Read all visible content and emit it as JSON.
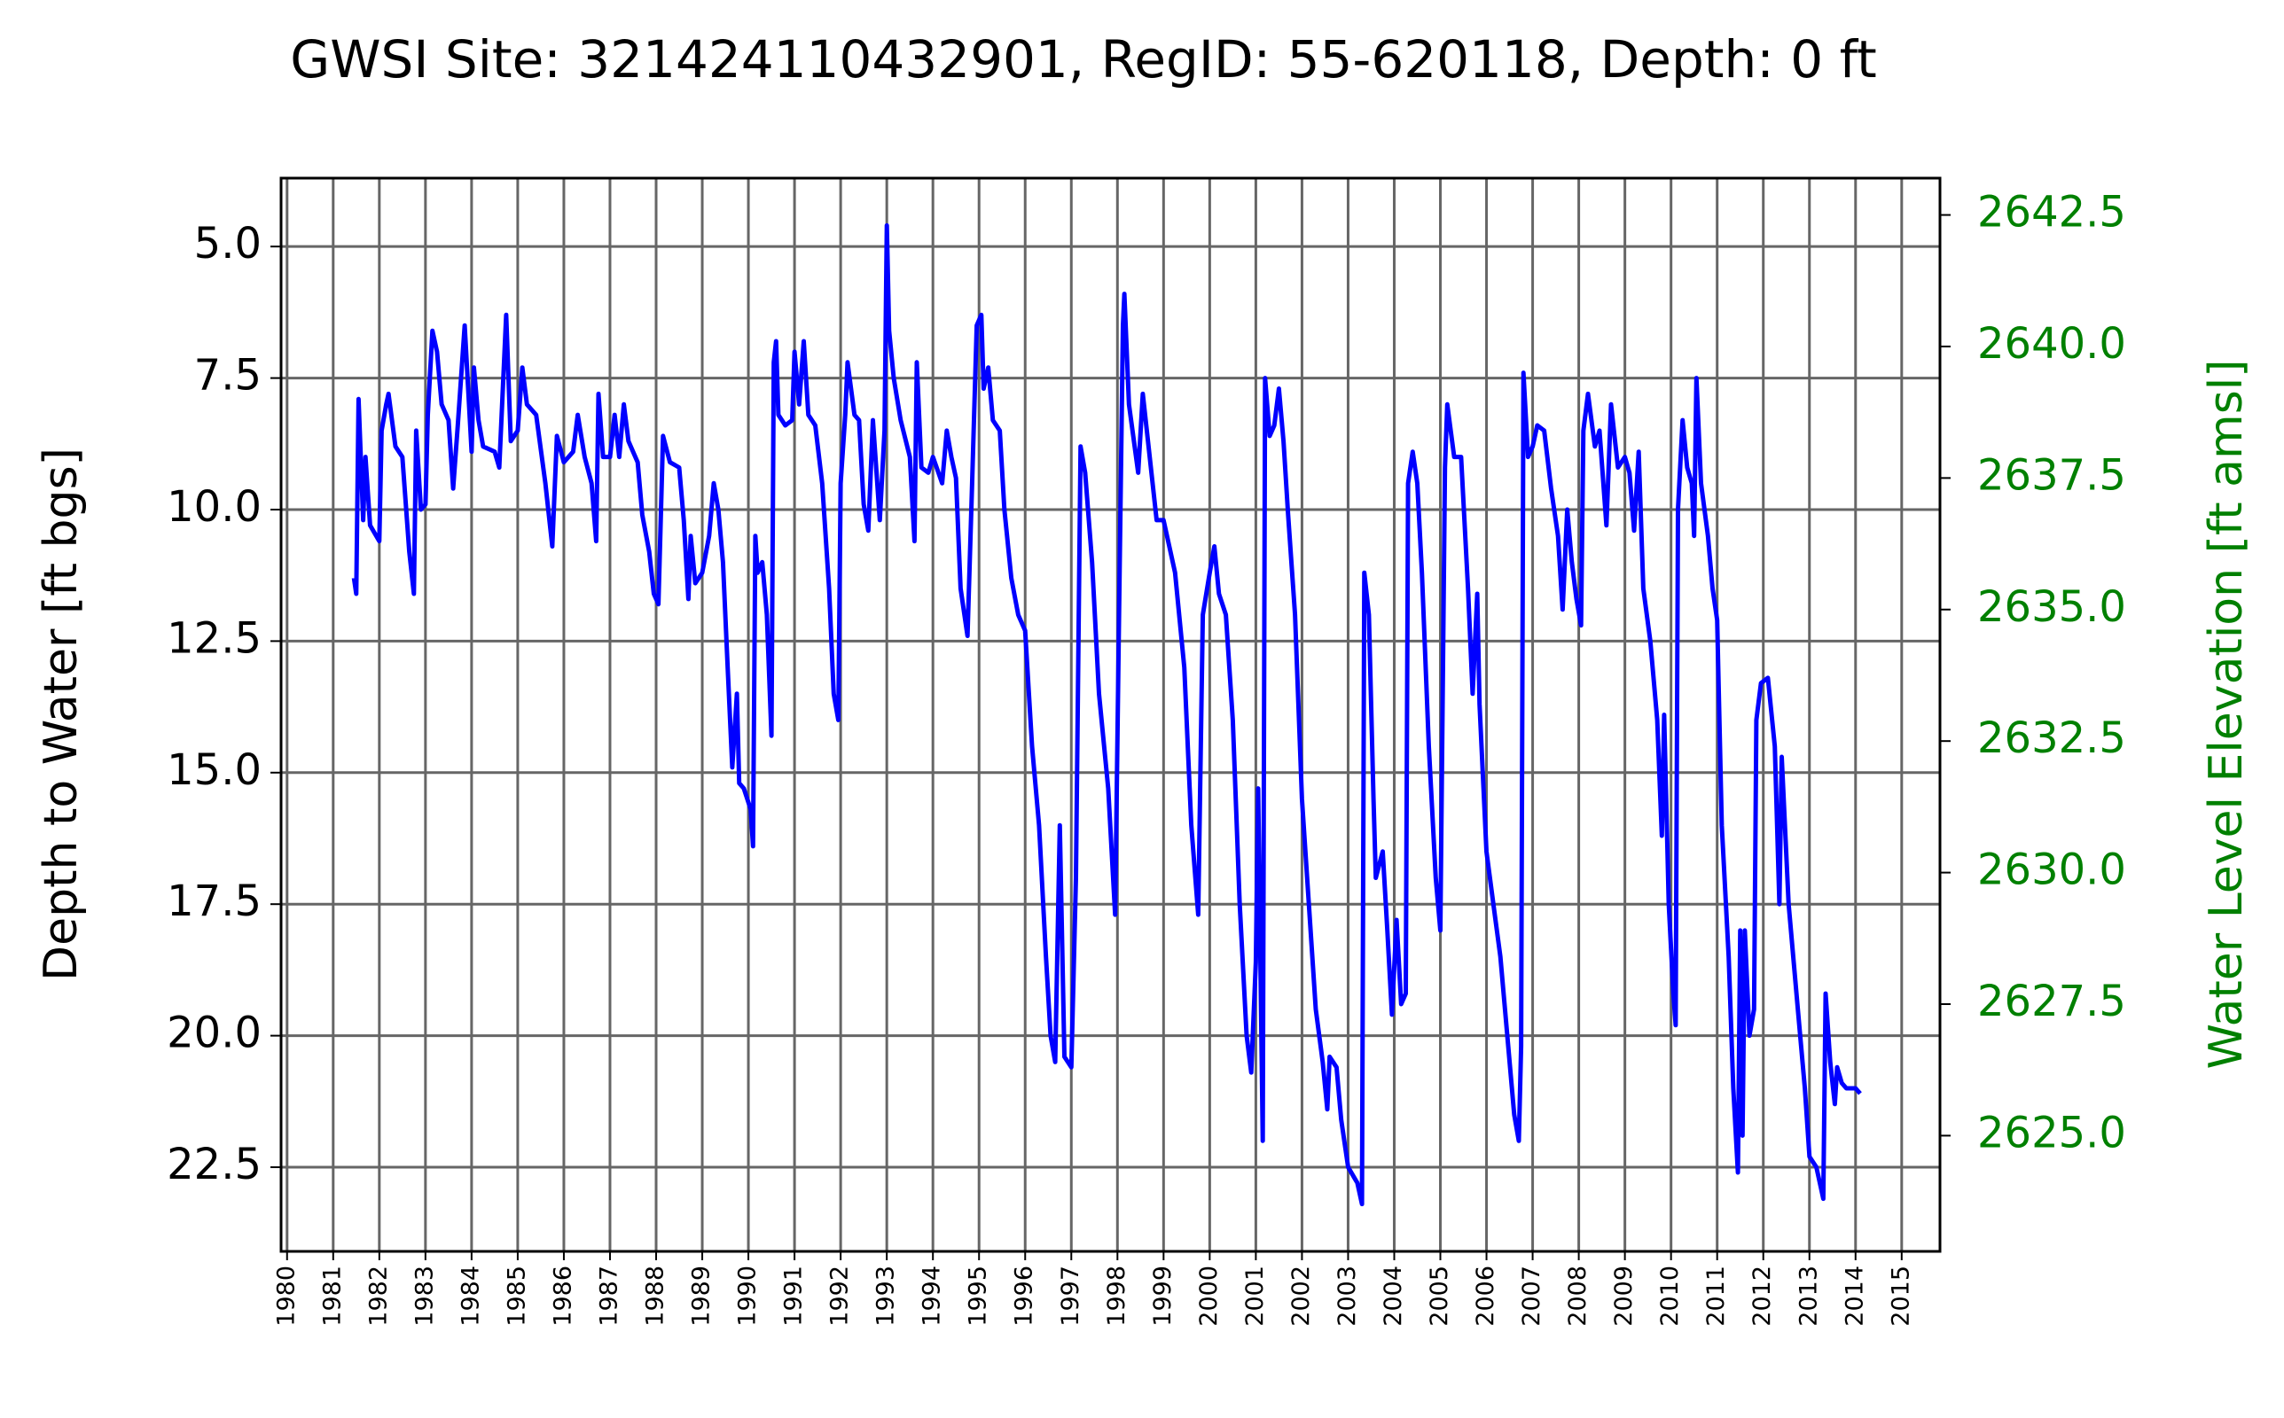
{
  "chart_data": {
    "type": "line",
    "title": "GWSI Site: 321424110432901, RegID: 55-620118, Depth: 0 ft",
    "y_label": "Depth to Water [ft bgs]",
    "y2_label": "Water Level Elevation [ft amsl]",
    "y2_color": "#008000",
    "grid": true,
    "y_inverted": true,
    "xlim": [
      1979.87,
      2015.83
    ],
    "xticks": [
      1980,
      1981,
      1982,
      1983,
      1984,
      1985,
      1986,
      1987,
      1988,
      1989,
      1990,
      1991,
      1992,
      1993,
      1994,
      1995,
      1996,
      1997,
      1998,
      1999,
      2000,
      2001,
      2002,
      2003,
      2004,
      2005,
      2006,
      2007,
      2008,
      2009,
      2010,
      2011,
      2012,
      2013,
      2014,
      2015
    ],
    "ylim": [
      3.7,
      24.1
    ],
    "yticks": [
      {
        "value": 5,
        "label": "5.0"
      },
      7.5,
      {
        "value": 10,
        "label": "10.0"
      },
      12.5,
      {
        "value": 15,
        "label": "15.0"
      },
      17.5,
      {
        "value": 20,
        "label": "20.0"
      },
      22.5
    ],
    "y2lim": [
      2622.8,
      2643.2
    ],
    "y2ticks": [
      {
        "value": 2625,
        "label": "2625.0"
      },
      2627.5,
      {
        "value": 2630,
        "label": "2630.0"
      },
      2632.5,
      {
        "value": 2635,
        "label": "2635.0"
      },
      2637.5,
      {
        "value": 2640,
        "label": "2640.0"
      },
      2642.5
    ],
    "x": [
      1981.45,
      1981.5,
      1981.55,
      1981.65,
      1981.7,
      1981.8,
      1982.0,
      1982.05,
      1982.15,
      1982.2,
      1982.35,
      1982.5,
      1982.65,
      1982.75,
      1982.8,
      1982.9,
      1983.0,
      1983.05,
      1983.15,
      1983.25,
      1983.35,
      1983.5,
      1983.6,
      1983.7,
      1983.85,
      1984.0,
      1984.05,
      1984.15,
      1984.25,
      1984.5,
      1984.6,
      1984.75,
      1984.85,
      1985.0,
      1985.1,
      1985.2,
      1985.4,
      1985.6,
      1985.75,
      1985.85,
      1986.0,
      1986.2,
      1986.3,
      1986.45,
      1986.6,
      1986.7,
      1986.75,
      1986.85,
      1987.0,
      1987.1,
      1987.2,
      1987.3,
      1987.4,
      1987.6,
      1987.7,
      1987.85,
      1987.95,
      1988.05,
      1988.15,
      1988.3,
      1988.5,
      1988.6,
      1988.7,
      1988.75,
      1988.85,
      1989.0,
      1989.15,
      1989.25,
      1989.35,
      1989.45,
      1989.55,
      1989.65,
      1989.75,
      1989.8,
      1989.9,
      1990.05,
      1990.1,
      1990.15,
      1990.2,
      1990.3,
      1990.4,
      1990.5,
      1990.55,
      1990.6,
      1990.65,
      1990.8,
      1990.95,
      1991.0,
      1991.1,
      1991.2,
      1991.3,
      1991.45,
      1991.6,
      1991.75,
      1991.85,
      1991.95,
      1992.0,
      1992.1,
      1992.15,
      1992.3,
      1992.4,
      1992.5,
      1992.6,
      1992.7,
      1992.85,
      1992.95,
      1993.0,
      1993.05,
      1993.15,
      1993.3,
      1993.5,
      1993.6,
      1993.65,
      1993.75,
      1993.9,
      1994.0,
      1994.2,
      1994.3,
      1994.4,
      1994.5,
      1994.6,
      1994.75,
      1994.85,
      1994.95,
      1995.05,
      1995.1,
      1995.2,
      1995.3,
      1995.45,
      1995.55,
      1995.7,
      1995.85,
      1996.0,
      1996.15,
      1996.3,
      1996.45,
      1996.55,
      1996.65,
      1996.75,
      1996.85,
      1997.0,
      1997.1,
      1997.2,
      1997.3,
      1997.45,
      1997.6,
      1997.8,
      1997.95,
      1998.05,
      1998.12,
      1998.15,
      1998.25,
      1998.45,
      1998.55,
      1998.7,
      1998.85,
      1999.0,
      1999.25,
      1999.45,
      1999.6,
      1999.75,
      1999.85,
      2000.0,
      2000.1,
      2000.2,
      2000.35,
      2000.5,
      2000.65,
      2000.8,
      2000.9,
      2001.0,
      2001.05,
      2001.15,
      2001.2,
      2001.3,
      2001.4,
      2001.5,
      2001.6,
      2001.7,
      2001.85,
      2002.0,
      2002.15,
      2002.3,
      2002.45,
      2002.55,
      2002.6,
      2002.75,
      2002.85,
      2003.0,
      2003.2,
      2003.3,
      2003.35,
      2003.45,
      2003.55,
      2003.6,
      2003.75,
      2003.85,
      2003.95,
      2004.05,
      2004.15,
      2004.25,
      2004.3,
      2004.4,
      2004.5,
      2004.6,
      2004.75,
      2004.9,
      2005.0,
      2005.1,
      2005.15,
      2005.3,
      2005.45,
      2005.6,
      2005.7,
      2005.8,
      2005.85,
      2006.0,
      2006.15,
      2006.3,
      2006.45,
      2006.6,
      2006.7,
      2006.75,
      2006.8,
      2006.9,
      2007.0,
      2007.1,
      2007.25,
      2007.4,
      2007.55,
      2007.65,
      2007.75,
      2007.85,
      2007.95,
      2008.05,
      2008.1,
      2008.2,
      2008.35,
      2008.45,
      2008.6,
      2008.7,
      2008.85,
      2009.0,
      2009.1,
      2009.2,
      2009.3,
      2009.4,
      2009.55,
      2009.7,
      2009.8,
      2009.85,
      2009.95,
      2010.05,
      2010.1,
      2010.15,
      2010.25,
      2010.35,
      2010.45,
      2010.5,
      2010.55,
      2010.65,
      2010.8,
      2010.9,
      2011.0,
      2011.1,
      2011.25,
      2011.35,
      2011.45,
      2011.5,
      2011.55,
      2011.6,
      2011.7,
      2011.8,
      2011.85,
      2011.95,
      2012.1,
      2012.25,
      2012.35,
      2012.4,
      2012.55,
      2012.75,
      2012.9,
      2013.0,
      2013.15,
      2013.3,
      2013.35,
      2013.45,
      2013.55,
      2013.6,
      2013.7,
      2013.8,
      2014.0,
      2014.1
    ],
    "series": [
      {
        "color": "#0000ff",
        "values": [
          11.3,
          11.6,
          7.9,
          10.2,
          9.0,
          10.3,
          10.6,
          8.5,
          8.0,
          7.8,
          8.8,
          9.0,
          10.8,
          11.6,
          8.5,
          10.0,
          9.9,
          8.2,
          6.6,
          7.0,
          8.0,
          8.3,
          9.6,
          8.4,
          6.5,
          8.9,
          7.3,
          8.3,
          8.8,
          8.9,
          9.2,
          6.3,
          8.7,
          8.5,
          7.3,
          8.0,
          8.2,
          9.5,
          10.7,
          8.6,
          9.1,
          8.9,
          8.2,
          9.0,
          9.5,
          10.6,
          7.8,
          9.0,
          9.0,
          8.2,
          9.0,
          8.0,
          8.7,
          9.1,
          10.1,
          10.8,
          11.6,
          11.8,
          8.6,
          9.1,
          9.2,
          10.2,
          11.7,
          10.5,
          11.4,
          11.2,
          10.5,
          9.5,
          10.0,
          11.0,
          13.0,
          14.9,
          13.5,
          15.2,
          15.3,
          15.7,
          16.4,
          10.5,
          11.2,
          11.0,
          12.0,
          14.3,
          7.2,
          6.8,
          8.2,
          8.4,
          8.3,
          7.0,
          8.0,
          6.8,
          8.2,
          8.4,
          9.5,
          11.5,
          13.5,
          14.0,
          9.5,
          8.2,
          7.2,
          8.2,
          8.3,
          9.9,
          10.4,
          8.3,
          10.2,
          8.5,
          4.6,
          6.6,
          7.5,
          8.3,
          9.0,
          10.6,
          7.2,
          9.2,
          9.3,
          9.0,
          9.5,
          8.5,
          9.0,
          9.4,
          11.5,
          12.4,
          9.5,
          6.5,
          6.3,
          7.7,
          7.3,
          8.3,
          8.5,
          10.0,
          11.3,
          12.0,
          12.3,
          14.5,
          16.0,
          18.5,
          20.0,
          20.5,
          16.0,
          20.4,
          20.6,
          17.0,
          8.8,
          9.3,
          11.0,
          13.5,
          15.3,
          17.7,
          11.0,
          6.5,
          5.9,
          8.0,
          9.3,
          7.8,
          9.0,
          10.2,
          10.2,
          11.2,
          13.0,
          16.0,
          17.7,
          12.0,
          11.2,
          10.7,
          11.6,
          12.0,
          14.0,
          17.5,
          20.0,
          20.7,
          18.6,
          15.3,
          22.0,
          7.5,
          8.6,
          8.4,
          7.7,
          8.7,
          10.1,
          12.0,
          15.5,
          17.5,
          19.5,
          20.5,
          21.4,
          20.4,
          20.6,
          21.6,
          22.5,
          22.8,
          23.2,
          11.2,
          12.0,
          15.5,
          17.0,
          16.5,
          18.0,
          19.6,
          17.8,
          19.4,
          19.2,
          9.5,
          8.9,
          9.5,
          11.2,
          14.5,
          17.0,
          18.0,
          9.2,
          8.0,
          9.0,
          9.0,
          11.5,
          13.5,
          11.6,
          13.7,
          16.5,
          17.5,
          18.5,
          20.0,
          21.5,
          22.0,
          20.2,
          7.4,
          9.0,
          8.8,
          8.4,
          8.5,
          9.6,
          10.5,
          11.9,
          10.0,
          11.0,
          11.7,
          12.2,
          8.5,
          7.8,
          8.8,
          8.5,
          10.3,
          8.0,
          9.2,
          9.0,
          9.3,
          10.4,
          8.9,
          11.5,
          12.5,
          14.0,
          16.2,
          13.9,
          17.5,
          19.2,
          19.8,
          10.0,
          8.3,
          9.2,
          9.5,
          10.5,
          7.5,
          9.5,
          10.5,
          11.5,
          12.1,
          16.0,
          18.5,
          21.0,
          22.6,
          18.0,
          21.9,
          18.0,
          20.0,
          19.5,
          14.0,
          13.3,
          13.2,
          14.5,
          17.5,
          14.7,
          17.5,
          19.5,
          21.0,
          22.3,
          22.5,
          23.1,
          19.2,
          20.5,
          21.3,
          20.6,
          20.9,
          21.0,
          21.0,
          21.1
        ]
      }
    ]
  }
}
